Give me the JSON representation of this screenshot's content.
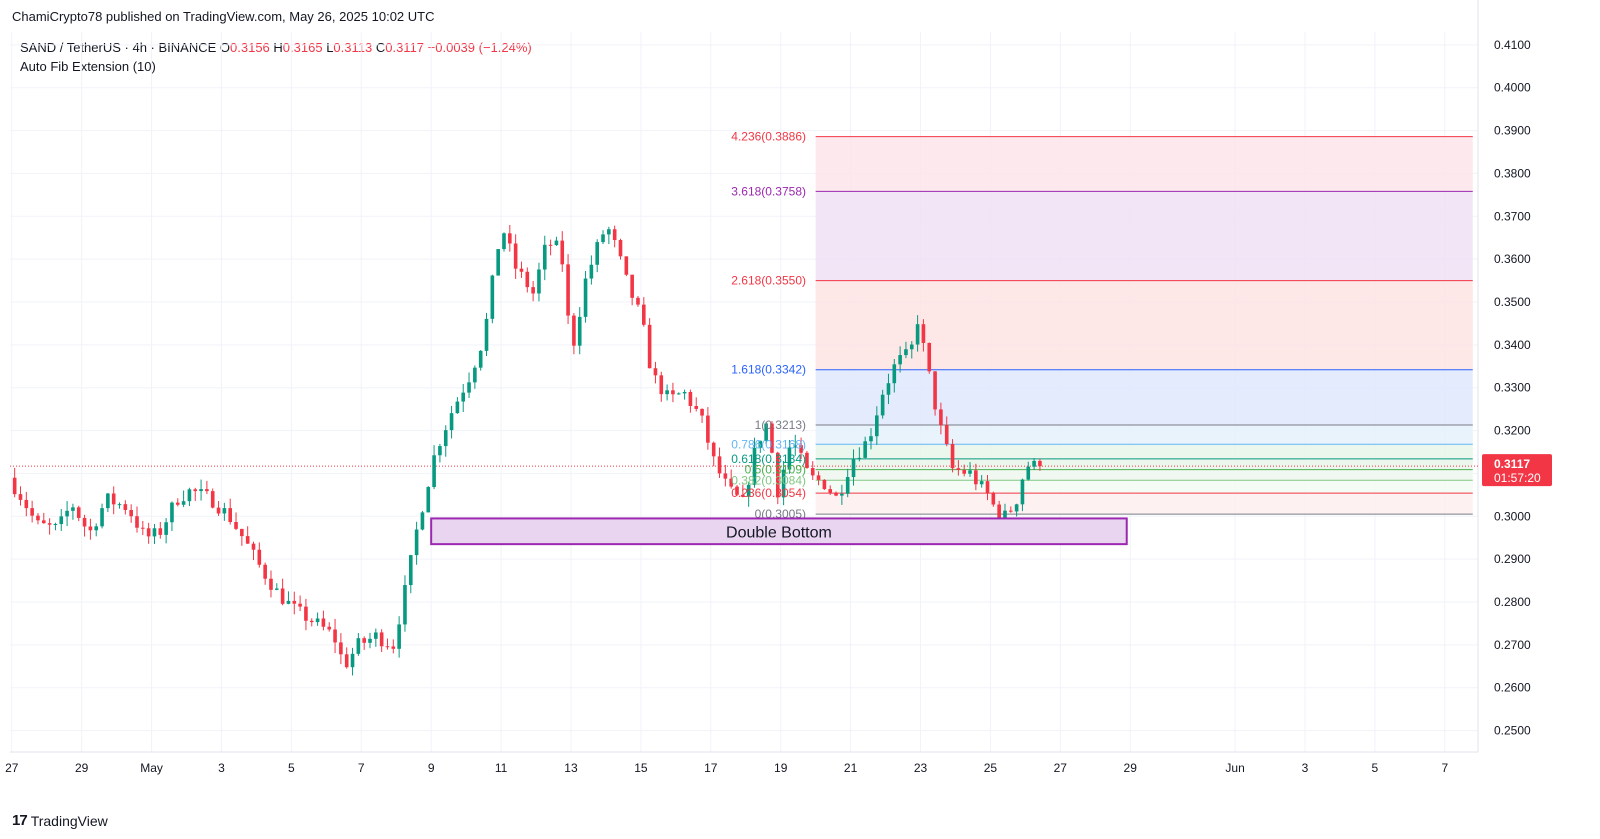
{
  "header": {
    "publisher": "ChamiCrypto78 published on TradingView.com, May 26, 2025 10:02 UTC",
    "symbol": "SAND / TetherUS · 4h · BINANCE",
    "ohlc": {
      "o_label": "O",
      "o": "0.3156",
      "h_label": "H",
      "h": "0.3165",
      "l_label": "L",
      "l": "0.3113",
      "c_label": "C",
      "c": "0.3117",
      "change": "−0.0039 (−1.24%)"
    },
    "indicator": "Auto Fib Extension (10)"
  },
  "footer": {
    "logo_text": "TradingView",
    "logo_icon": "tradingview-logo-icon"
  },
  "chart_data": {
    "type": "candlestick",
    "interval": "4h",
    "ylim": [
      0.245,
      0.413
    ],
    "y_ticks": [
      "0.4100",
      "0.4000",
      "0.3900",
      "0.3800",
      "0.3700",
      "0.3600",
      "0.3500",
      "0.3400",
      "0.3300",
      "0.3200",
      "0.3100",
      "0.3000",
      "0.2900",
      "0.2800",
      "0.2700",
      "0.2600",
      "0.2500"
    ],
    "x_ticks": [
      {
        "label": "27",
        "day": -3
      },
      {
        "label": "29",
        "day": -1
      },
      {
        "label": "May",
        "day": 1
      },
      {
        "label": "3",
        "day": 3
      },
      {
        "label": "5",
        "day": 5
      },
      {
        "label": "7",
        "day": 7
      },
      {
        "label": "9",
        "day": 9
      },
      {
        "label": "11",
        "day": 11
      },
      {
        "label": "13",
        "day": 13
      },
      {
        "label": "15",
        "day": 15
      },
      {
        "label": "17",
        "day": 17
      },
      {
        "label": "19",
        "day": 19
      },
      {
        "label": "21",
        "day": 21
      },
      {
        "label": "23",
        "day": 23
      },
      {
        "label": "25",
        "day": 25
      },
      {
        "label": "27",
        "day": 27
      },
      {
        "label": "29",
        "day": 29
      },
      {
        "label": "Jun",
        "day": 32
      },
      {
        "label": "3",
        "day": 34
      },
      {
        "label": "5",
        "day": 36
      },
      {
        "label": "7",
        "day": 38
      }
    ],
    "x_range_days": [
      -3.05,
      38.95
    ],
    "price_path": [
      [
        -3.0,
        0.309
      ],
      [
        -2.6,
        0.304
      ],
      [
        -2.2,
        0.298
      ],
      [
        -1.6,
        0.297
      ],
      [
        -1.2,
        0.303
      ],
      [
        -0.7,
        0.296
      ],
      [
        -0.2,
        0.304
      ],
      [
        0.4,
        0.302
      ],
      [
        0.9,
        0.295
      ],
      [
        1.3,
        0.296
      ],
      [
        1.8,
        0.304
      ],
      [
        2.2,
        0.306
      ],
      [
        2.8,
        0.304
      ],
      [
        3.3,
        0.3
      ],
      [
        3.7,
        0.295
      ],
      [
        4.2,
        0.288
      ],
      [
        4.7,
        0.282
      ],
      [
        5.2,
        0.278
      ],
      [
        5.8,
        0.275
      ],
      [
        6.3,
        0.272
      ],
      [
        6.6,
        0.265
      ],
      [
        7.0,
        0.27
      ],
      [
        7.5,
        0.272
      ],
      [
        8.0,
        0.27
      ],
      [
        8.4,
        0.285
      ],
      [
        8.7,
        0.298
      ],
      [
        9.2,
        0.315
      ],
      [
        9.7,
        0.325
      ],
      [
        10.2,
        0.333
      ],
      [
        10.6,
        0.342
      ],
      [
        10.9,
        0.358
      ],
      [
        11.1,
        0.368
      ],
      [
        11.5,
        0.358
      ],
      [
        12.0,
        0.352
      ],
      [
        12.4,
        0.364
      ],
      [
        12.8,
        0.362
      ],
      [
        13.1,
        0.338
      ],
      [
        13.5,
        0.355
      ],
      [
        13.8,
        0.362
      ],
      [
        14.1,
        0.368
      ],
      [
        14.4,
        0.362
      ],
      [
        14.7,
        0.354
      ],
      [
        15.1,
        0.346
      ],
      [
        15.4,
        0.333
      ],
      [
        15.9,
        0.327
      ],
      [
        16.3,
        0.329
      ],
      [
        16.8,
        0.323
      ],
      [
        17.2,
        0.312
      ],
      [
        17.6,
        0.306
      ],
      [
        18.0,
        0.303
      ],
      [
        18.4,
        0.317
      ],
      [
        18.7,
        0.322
      ],
      [
        19.0,
        0.306
      ],
      [
        19.4,
        0.318
      ],
      [
        19.9,
        0.309
      ],
      [
        20.3,
        0.308
      ],
      [
        20.7,
        0.304
      ],
      [
        21.1,
        0.313
      ],
      [
        21.6,
        0.318
      ],
      [
        22.0,
        0.329
      ],
      [
        22.4,
        0.336
      ],
      [
        22.8,
        0.338
      ],
      [
        23.0,
        0.346
      ],
      [
        23.3,
        0.334
      ],
      [
        23.6,
        0.322
      ],
      [
        24.0,
        0.311
      ],
      [
        24.5,
        0.31
      ],
      [
        25.0,
        0.305
      ],
      [
        25.4,
        0.299
      ],
      [
        25.8,
        0.303
      ],
      [
        26.1,
        0.312
      ],
      [
        26.35,
        0.3117
      ]
    ],
    "last_price": {
      "value": 0.3117,
      "label": "0.3117",
      "countdown": "01:57:20",
      "color": "#f23645"
    },
    "fib_levels": [
      {
        "level": "4.236",
        "price": 0.3886,
        "label": "4.236(0.3886)",
        "color": "#f23645",
        "band_color": "#fce4ea"
      },
      {
        "level": "3.618",
        "price": 0.3758,
        "label": "3.618(0.3758)",
        "color": "#9c27b0",
        "band_color": "#efe1f4"
      },
      {
        "level": "2.618",
        "price": 0.355,
        "label": "2.618(0.3550)",
        "color": "#f23645",
        "band_color": "#fde3e3"
      },
      {
        "level": "1.618",
        "price": 0.3342,
        "label": "1.618(0.3342)",
        "color": "#2962ff",
        "band_color": "#dfe8fd"
      },
      {
        "level": "1",
        "price": 0.3213,
        "label": "1(0.3213)",
        "color": "#787b86",
        "band_color": "#e4f1fc"
      },
      {
        "level": "0.786",
        "price": 0.3168,
        "label": "0.786(0.3168)",
        "color": "#64b5f6",
        "band_color": "#e8f5e9"
      },
      {
        "level": "0.618",
        "price": 0.3134,
        "label": "0.618(0.3134)",
        "color": "#089981",
        "band_color": "#e8f5e9"
      },
      {
        "level": "0.5",
        "price": 0.3109,
        "label": "0.5(0.3109)",
        "color": "#4caf50",
        "band_color": "#eef7ee"
      },
      {
        "level": "0.382",
        "price": 0.3084,
        "label": "0.382(0.3084)",
        "color": "#81c784",
        "band_color": "#f3faf3"
      },
      {
        "level": "0.236",
        "price": 0.3054,
        "label": "0.236(0.3054)",
        "color": "#f23645",
        "band_color": "#fdeeee"
      },
      {
        "level": "0",
        "price": 0.3005,
        "label": "0(0.3005)",
        "color": "#787b86",
        "band_color": null
      }
    ],
    "fib_x_start_day": 20.0,
    "fib_x_end_day": 38.8,
    "annotation": {
      "text": "Double Bottom",
      "x0_day": 9.0,
      "x1_day": 28.9,
      "y_top": 0.2995,
      "y_bottom": 0.2935,
      "fill": "#ead5f0",
      "stroke": "#9c27b0"
    },
    "colors": {
      "up": "#089981",
      "down": "#f23645",
      "grid": "#f0f3fa",
      "axis_text": "#131722"
    }
  }
}
